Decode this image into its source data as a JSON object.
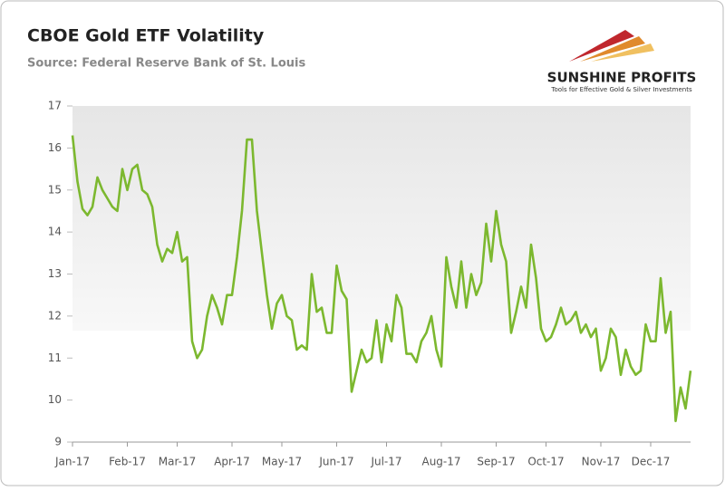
{
  "chart_data": {
    "type": "line",
    "title": "CBOE Gold ETF Volatility",
    "subtitle": "Source: Federal Reserve Bank of St. Louis",
    "logo": {
      "name": "SUNSHINE PROFITS",
      "tagline": "Tools for Effective Gold & Silver Investments"
    },
    "categories": [
      "Jan-17",
      null,
      null,
      null,
      null,
      null,
      null,
      null,
      null,
      null,
      null,
      "Feb-17",
      null,
      null,
      null,
      null,
      null,
      null,
      null,
      null,
      null,
      "Mar-17",
      null,
      null,
      null,
      null,
      null,
      null,
      null,
      null,
      null,
      null,
      "Apr-17",
      null,
      null,
      null,
      null,
      null,
      null,
      null,
      null,
      null,
      "May-17",
      null,
      null,
      null,
      null,
      null,
      null,
      null,
      null,
      null,
      null,
      "Jun-17",
      null,
      null,
      null,
      null,
      null,
      null,
      null,
      null,
      null,
      "Jul-17",
      null,
      null,
      null,
      null,
      null,
      null,
      null,
      null,
      null,
      null,
      "Aug-17",
      null,
      null,
      null,
      null,
      null,
      null,
      null,
      null,
      null,
      null,
      "Sep-17",
      null,
      null,
      null,
      null,
      null,
      null,
      null,
      null,
      null,
      "Oct-17",
      null,
      null,
      null,
      null,
      null,
      null,
      null,
      null,
      null,
      null,
      "Nov-17",
      null,
      null,
      null,
      null,
      null,
      null,
      null,
      null,
      null,
      "Dec-17",
      null,
      null,
      null,
      null,
      null,
      null,
      null,
      null
    ],
    "values": [
      16.3,
      15.2,
      14.55,
      14.4,
      14.6,
      15.3,
      15.0,
      14.8,
      14.6,
      14.5,
      15.5,
      15.0,
      15.5,
      15.6,
      15.0,
      14.9,
      14.6,
      13.7,
      13.3,
      13.6,
      13.5,
      14.0,
      13.3,
      13.4,
      11.4,
      11.0,
      11.2,
      12.0,
      12.5,
      12.2,
      11.8,
      12.5,
      12.5,
      13.4,
      14.5,
      16.2,
      16.2,
      14.5,
      13.5,
      12.5,
      11.7,
      12.3,
      12.5,
      12.0,
      11.9,
      11.2,
      11.3,
      11.2,
      13.0,
      12.1,
      12.2,
      11.6,
      11.6,
      13.2,
      12.6,
      12.4,
      10.2,
      10.7,
      11.2,
      10.9,
      11.0,
      11.9,
      10.9,
      11.8,
      11.4,
      12.5,
      12.2,
      11.1,
      11.1,
      10.9,
      11.4,
      11.6,
      12.0,
      11.2,
      10.8,
      13.4,
      12.7,
      12.2,
      13.3,
      12.2,
      13.0,
      12.5,
      12.8,
      14.2,
      13.3,
      14.5,
      13.7,
      13.3,
      11.6,
      12.1,
      12.7,
      12.2,
      13.7,
      12.9,
      11.7,
      11.4,
      11.5,
      11.8,
      12.2,
      11.8,
      11.9,
      12.1,
      11.6,
      11.8,
      11.5,
      11.7,
      10.7,
      11.0,
      11.7,
      11.5,
      10.6,
      11.2,
      10.8,
      10.6,
      10.7,
      11.8,
      11.4,
      11.4,
      12.9,
      11.6,
      12.1,
      9.5,
      10.3,
      9.8,
      10.7
    ],
    "color": "#7cb82f",
    "ylim": [
      9,
      17
    ],
    "yticks": [
      9,
      10,
      11,
      12,
      13,
      14,
      15,
      16,
      17
    ]
  }
}
